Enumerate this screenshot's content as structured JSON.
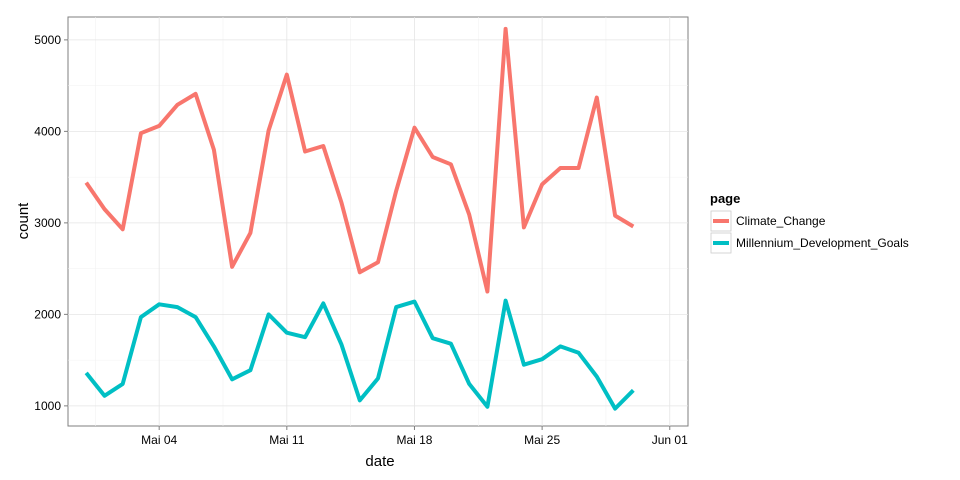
{
  "chart_data": {
    "type": "line",
    "xlabel": "date",
    "ylabel": "count",
    "x_ticks": [
      "Mai 04",
      "Mai 11",
      "Mai 18",
      "Mai 25",
      "Jun 01"
    ],
    "x_tick_dates": [
      "2015-05-04",
      "2015-05-11",
      "2015-05-18",
      "2015-05-25",
      "2015-06-01"
    ],
    "y_ticks": [
      1000,
      2000,
      3000,
      4000,
      5000
    ],
    "xlim": [
      "2015-04-29",
      "2015-06-02"
    ],
    "ylim": [
      780,
      5250
    ],
    "grid": true,
    "legend": {
      "title": "page",
      "position": "right"
    },
    "x": [
      "2015-04-30",
      "2015-05-01",
      "2015-05-02",
      "2015-05-03",
      "2015-05-04",
      "2015-05-05",
      "2015-05-06",
      "2015-05-07",
      "2015-05-08",
      "2015-05-09",
      "2015-05-10",
      "2015-05-11",
      "2015-05-12",
      "2015-05-13",
      "2015-05-14",
      "2015-05-15",
      "2015-05-16",
      "2015-05-17",
      "2015-05-18",
      "2015-05-19",
      "2015-05-20",
      "2015-05-21",
      "2015-05-22",
      "2015-05-23",
      "2015-05-24",
      "2015-05-25",
      "2015-05-26",
      "2015-05-27",
      "2015-05-28",
      "2015-05-29",
      "2015-05-30",
      "2015-05-31"
    ],
    "series": [
      {
        "name": "Climate_Change",
        "color": "#F8766D",
        "values": [
          3440,
          3150,
          2930,
          3980,
          4060,
          4290,
          4410,
          3800,
          2520,
          2890,
          4010,
          4620,
          3780,
          3840,
          3220,
          2460,
          2570,
          3350,
          4040,
          3720,
          3640,
          3090,
          2250,
          5120,
          2950,
          3420,
          3600,
          3600,
          4370,
          3080,
          2960,
          null
        ]
      },
      {
        "name": "Millennium_Development_Goals",
        "color": "#00BFC4",
        "values": [
          1360,
          1110,
          1240,
          1970,
          2110,
          2080,
          1970,
          1650,
          1290,
          1390,
          2000,
          1800,
          1750,
          2120,
          1670,
          1060,
          1300,
          2080,
          2140,
          1740,
          1680,
          1240,
          990,
          2150,
          1450,
          1510,
          1650,
          1580,
          1320,
          970,
          1170,
          null
        ]
      }
    ]
  }
}
